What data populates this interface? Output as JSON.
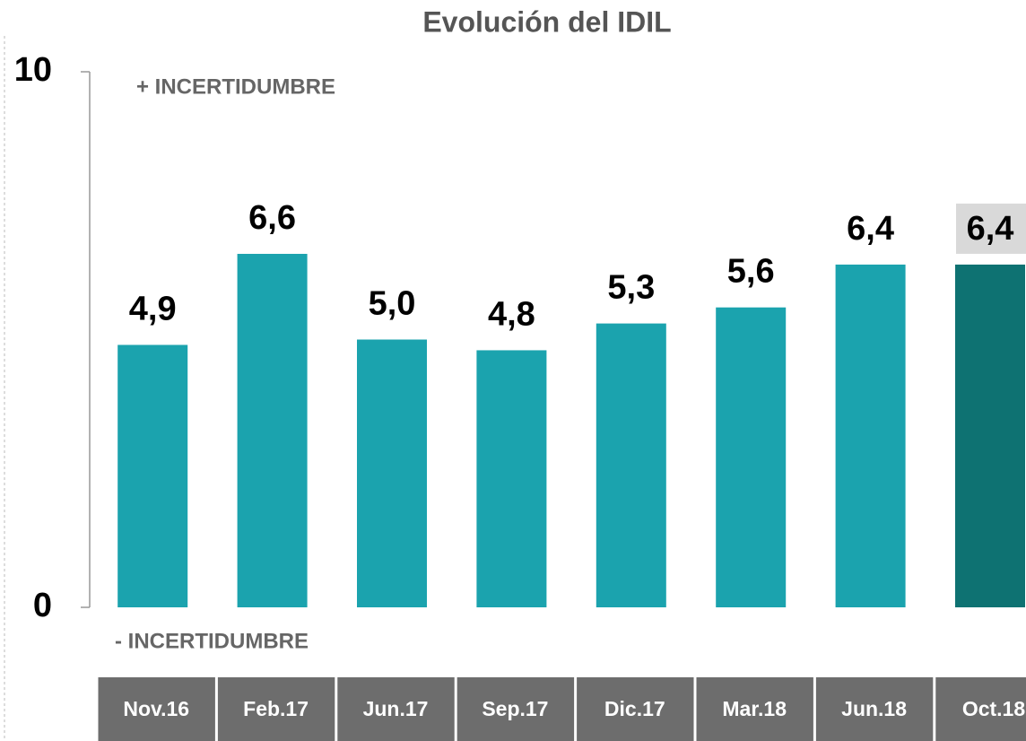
{
  "chart_data": {
    "type": "bar",
    "title": "Evolución del IDIL",
    "categories": [
      "Nov.16",
      "Feb.17",
      "Jun.17",
      "Sep.17",
      "Dic.17",
      "Mar.18",
      "Jun.18",
      "Oct.18"
    ],
    "values": [
      4.9,
      6.6,
      5.0,
      4.8,
      5.3,
      5.6,
      6.4,
      6.4
    ],
    "value_labels": [
      "4,9",
      "6,6",
      "5,0",
      "4,8",
      "5,3",
      "5,6",
      "6,4",
      "6,4"
    ],
    "color": "#1ba3ae",
    "colors": [
      "#1ba3ae",
      "#1ba3ae",
      "#1ba3ae",
      "#1ba3ae",
      "#1ba3ae",
      "#1ba3ae",
      "#1ba3ae",
      "#0e7272"
    ],
    "ylim": [
      0,
      10
    ],
    "yticks": [
      0,
      10
    ],
    "annotations": [
      "+ INCERTIDUMBRE",
      "- INCERTIDUMBRE"
    ]
  }
}
